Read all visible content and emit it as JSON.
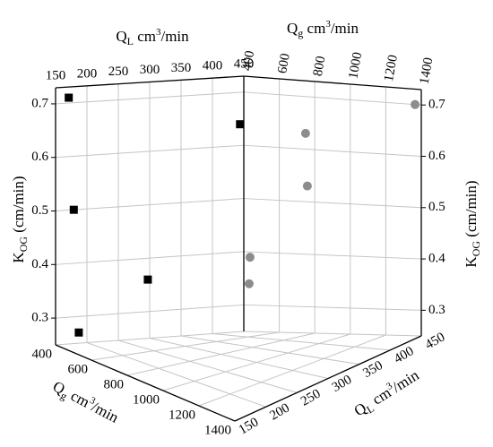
{
  "chart_data": {
    "type": "scatter3d",
    "xlabel": {
      "main": "Q",
      "sub": "g",
      "unit": " cm",
      "sup": "3",
      "rest": "/min"
    },
    "ylabel": {
      "main": "Q",
      "sub": "L",
      "unit": " cm",
      "sup": "3",
      "rest": "/min"
    },
    "zlabel": {
      "main": "K",
      "sub": "OG",
      "unit": " (cm/min)"
    },
    "xlim": [
      400,
      1400
    ],
    "xticks": [
      400,
      600,
      800,
      1000,
      1200,
      1400
    ],
    "ylim": [
      150,
      450
    ],
    "yticks": [
      150,
      200,
      250,
      300,
      350,
      400,
      450
    ],
    "zlim": [
      0.25,
      0.73
    ],
    "zticks": [
      0.3,
      0.4,
      0.5,
      0.6,
      0.7
    ],
    "grid": true,
    "series": [
      {
        "color": "#000000",
        "marker": "square",
        "y": [
          171,
          179,
          187,
          297,
          444
        ],
        "values": [
          0.71,
          0.5,
          0.27,
          0.36,
          0.64
        ]
      },
      {
        "color": "#8c8c8c",
        "marker": "circle",
        "x": [
          1365,
          748,
          758,
          435,
          430
        ],
        "values": [
          0.7,
          0.63,
          0.53,
          0.39,
          0.34
        ]
      }
    ]
  }
}
